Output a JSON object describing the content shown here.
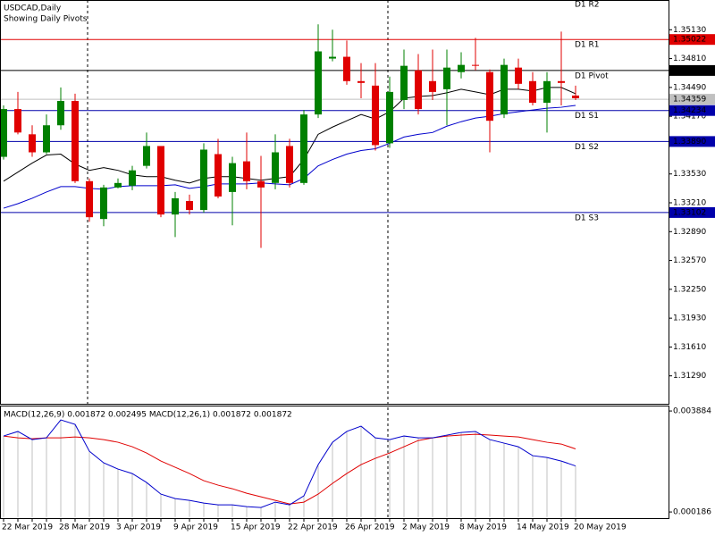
{
  "chart_data": [
    {
      "type": "candlestick",
      "title": "USDCAD,Daily",
      "subtitle": "Showing Daily Pivots",
      "categories": [
        "22 Mar 2019",
        null,
        null,
        null,
        "28 Mar 2019",
        null,
        null,
        null,
        "3 Apr 2019",
        null,
        null,
        null,
        "9 Apr 2019",
        null,
        null,
        null,
        "15 Apr 2019",
        null,
        null,
        null,
        "22 Apr 2019",
        null,
        null,
        null,
        "26 Apr 2019",
        null,
        null,
        null,
        "2 May 2019",
        null,
        null,
        null,
        "8 May 2019",
        null,
        null,
        null,
        "14 May 2019",
        null,
        null,
        null,
        "20 May 2019"
      ],
      "open": [
        1.3372,
        1.3425,
        1.3397,
        1.3377,
        1.3407,
        1.3434,
        1.3345,
        1.3303,
        1.3338,
        1.334,
        1.3362,
        1.3384,
        1.3308,
        1.3323,
        1.3313,
        1.3375,
        1.3333,
        1.3367,
        1.3345,
        1.3343,
        1.3384,
        1.3343,
        1.3419,
        1.3481,
        1.3483,
        1.3456,
        1.3451,
        1.3387,
        1.3435,
        1.3468,
        1.3456,
        1.3447,
        1.3466,
        1.3474,
        1.3466,
        1.3419,
        1.3471,
        1.3456,
        1.3432,
        1.3456,
        1.344
      ],
      "high": [
        1.3429,
        1.3444,
        1.3407,
        1.3419,
        1.3449,
        1.3442,
        1.3348,
        1.3341,
        1.3348,
        1.3362,
        1.3399,
        1.3384,
        1.3333,
        1.333,
        1.3387,
        1.3392,
        1.3372,
        1.3399,
        1.3373,
        1.3397,
        1.3392,
        1.3424,
        1.3519,
        1.3513,
        1.3501,
        1.3476,
        1.3476,
        1.3461,
        1.3491,
        1.3486,
        1.3491,
        1.3491,
        1.3488,
        1.3504,
        1.3469,
        1.3481,
        1.3481,
        1.3466,
        1.3466,
        1.3511,
        1.3451
      ],
      "low": [
        1.3369,
        1.3397,
        1.3372,
        1.3375,
        1.3402,
        1.3343,
        1.33,
        1.3295,
        1.3337,
        1.3335,
        1.3359,
        1.3305,
        1.3283,
        1.3308,
        1.331,
        1.3326,
        1.3296,
        1.3336,
        1.3271,
        1.3336,
        1.3338,
        1.3341,
        1.3415,
        1.3478,
        1.3452,
        1.3437,
        1.3379,
        1.3382,
        1.3425,
        1.3419,
        1.3435,
        1.3407,
        1.3459,
        1.3468,
        1.3377,
        1.3415,
        1.3447,
        1.3429,
        1.3399,
        1.3429,
        1.3435
      ],
      "close": [
        1.3425,
        1.3399,
        1.3377,
        1.3407,
        1.3434,
        1.3345,
        1.3305,
        1.3338,
        1.3343,
        1.3357,
        1.3384,
        1.3308,
        1.3326,
        1.3313,
        1.338,
        1.3328,
        1.3365,
        1.3345,
        1.3338,
        1.3377,
        1.3343,
        1.3419,
        1.3489,
        1.3483,
        1.3456,
        1.3454,
        1.3385,
        1.3444,
        1.3473,
        1.3425,
        1.3444,
        1.3471,
        1.3474,
        1.3473,
        1.3412,
        1.3474,
        1.3453,
        1.3432,
        1.3456,
        1.3454,
        1.3437
      ],
      "up_color": "#008000",
      "down_color": "#e00000",
      "ylim": [
        1.3098,
        1.3546
      ],
      "yticks": [
        {
          "value": 1.3513,
          "label": "1.35130"
        },
        {
          "value": 1.3481,
          "label": "1.34810"
        },
        {
          "value": 1.3449,
          "label": "1.34490"
        },
        {
          "value": 1.3417,
          "label": "1.34170"
        },
        {
          "value": 1.3353,
          "label": "1.33530"
        },
        {
          "value": 1.3321,
          "label": "1.33210"
        },
        {
          "value": 1.3289,
          "label": "1.32890"
        },
        {
          "value": 1.3257,
          "label": "1.32570"
        },
        {
          "value": 1.3225,
          "label": "1.32250"
        },
        {
          "value": 1.3193,
          "label": "1.31930"
        },
        {
          "value": 1.3161,
          "label": "1.31610"
        },
        {
          "value": 1.3129,
          "label": "1.31290"
        }
      ],
      "overlays": [
        {
          "color": "#000000",
          "values": [
            1.3345,
            1.3355,
            1.3365,
            1.3374,
            1.3375,
            1.3364,
            1.3357,
            1.336,
            1.3357,
            1.3352,
            1.335,
            1.335,
            1.3346,
            1.3343,
            1.3348,
            1.335,
            1.335,
            1.3348,
            1.3346,
            1.3348,
            1.335,
            1.3369,
            1.3397,
            1.3405,
            1.3412,
            1.3419,
            1.3414,
            1.3422,
            1.3437,
            1.3439,
            1.344,
            1.3443,
            1.3447,
            1.3444,
            1.3441,
            1.3447,
            1.3447,
            1.3445,
            1.3449,
            1.3449,
            1.3442
          ]
        },
        {
          "color": "#0000cc",
          "values": [
            1.3315,
            1.332,
            1.3326,
            1.3333,
            1.3339,
            1.3339,
            1.3337,
            1.3336,
            1.3339,
            1.334,
            1.334,
            1.334,
            1.3341,
            1.3337,
            1.3339,
            1.3342,
            1.3342,
            1.3342,
            1.3343,
            1.3342,
            1.3341,
            1.3348,
            1.3362,
            1.3369,
            1.3375,
            1.3379,
            1.3381,
            1.3387,
            1.3394,
            1.3397,
            1.3399,
            1.3406,
            1.3411,
            1.3415,
            1.3417,
            1.342,
            1.3422,
            1.3424,
            1.3426,
            1.3427,
            1.3429
          ]
        }
      ],
      "levels": [
        {
          "name": "D1 R2",
          "value": null,
          "color": "#e00000"
        },
        {
          "name": "D1 R1",
          "value": 1.35022,
          "color": "#e00000"
        },
        {
          "name": "D1 Pivot",
          "value": 1.34678,
          "color": "#000000"
        },
        {
          "name": "D1 S1",
          "value": 1.34234,
          "color": "#0000aa"
        },
        {
          "name": "D1 S2",
          "value": {
            "value": 1.3389,
            "label": "1.33890"
          },
          "color": "#0000aa"
        },
        {
          "name": "D1 S3",
          "value": 1.33102,
          "color": "#0000aa"
        }
      ],
      "last_price": {
        "value": 1.34359,
        "color": "#c0c0c0"
      }
    },
    {
      "type": "macd",
      "title": "MACD(12,26,9) 0.001872 0.002495 MACD(12,26,1) 0.001872 0.001872",
      "ylim": [
        -4e-05,
        0.00405
      ],
      "yticks": [
        0.003884,
        0.000186
      ],
      "series": [
        {
          "style": "histogram",
          "color": "#c0c0c0",
          "values": [
            0.002968,
            0.003135,
            0.002837,
            0.002902,
            0.003557,
            0.003393,
            0.002411,
            0.001986,
            0.001757,
            0.001593,
            0.001266,
            0.00084,
            0.000677,
            0.000611,
            0.000513,
            0.000448,
            0.000448,
            0.000383,
            0.00035,
            0.000546,
            0.000448,
            0.000775,
            0.00192,
            0.002739,
            0.003135,
            0.003328,
            0.002902,
            0.002837,
            0.002968,
            0.002902,
            0.002902,
            0.003001,
            0.003099,
            0.003135,
            0.002837,
            0.002706,
            0.002575,
            0.002248,
            0.002182,
            0.002051,
            0.001872
          ]
        },
        {
          "style": "line",
          "color": "#e00000",
          "values": [
            0.002968,
            0.002902,
            0.00287,
            0.002902,
            0.002902,
            0.002935,
            0.002902,
            0.002837,
            0.002739,
            0.002575,
            0.002346,
            0.002051,
            0.001822,
            0.001593,
            0.001332,
            0.001168,
            0.001037,
            0.000873,
            0.000742,
            0.000611,
            0.000481,
            0.000546,
            0.00084,
            0.001233,
            0.001593,
            0.00192,
            0.00215,
            0.002346,
            0.002575,
            0.002804,
            0.002902,
            0.002968,
            0.003001,
            0.003033,
            0.003001,
            0.002968,
            0.002935,
            0.002837,
            0.002739,
            0.002673,
            0.002495
          ]
        },
        {
          "style": "line",
          "color": "#0000cc",
          "values": [
            0.002968,
            0.003135,
            0.002837,
            0.002902,
            0.003557,
            0.003393,
            0.002411,
            0.001986,
            0.001757,
            0.001593,
            0.001266,
            0.00084,
            0.000677,
            0.000611,
            0.000513,
            0.000448,
            0.000448,
            0.000383,
            0.00035,
            0.000546,
            0.000448,
            0.000775,
            0.00192,
            0.002739,
            0.003135,
            0.003328,
            0.002902,
            0.002837,
            0.002968,
            0.002902,
            0.002902,
            0.003001,
            0.003099,
            0.003135,
            0.002837,
            0.002706,
            0.002575,
            0.002248,
            0.002182,
            0.002051,
            0.001872
          ]
        }
      ]
    }
  ]
}
